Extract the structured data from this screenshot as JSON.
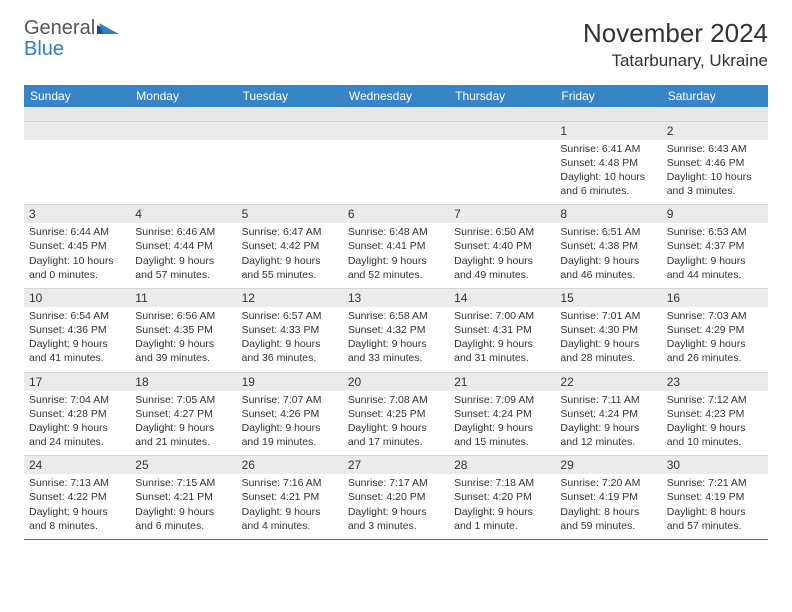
{
  "brand": {
    "name1": "General",
    "name2": "Blue"
  },
  "title": "November 2024",
  "location": "Tatarbunary, Ukraine",
  "colors": {
    "header_bg": "#3784c6",
    "header_text": "#ffffff",
    "daynum_bg": "#ebebeb",
    "row_border": "#3a6fa3",
    "brand_blue": "#2b7fc9",
    "text": "#333333",
    "background": "#ffffff"
  },
  "typography": {
    "title_fontsize": 26,
    "location_fontsize": 17,
    "dayheader_fontsize": 12,
    "daynum_fontsize": 12,
    "body_fontsize": 10.5,
    "font_family": "Arial"
  },
  "day_names": [
    "Sunday",
    "Monday",
    "Tuesday",
    "Wednesday",
    "Thursday",
    "Friday",
    "Saturday"
  ],
  "weeks": [
    [
      null,
      null,
      null,
      null,
      null,
      {
        "num": "1",
        "sunrise": "Sunrise: 6:41 AM",
        "sunset": "Sunset: 4:48 PM",
        "daylight": "Daylight: 10 hours and 6 minutes."
      },
      {
        "num": "2",
        "sunrise": "Sunrise: 6:43 AM",
        "sunset": "Sunset: 4:46 PM",
        "daylight": "Daylight: 10 hours and 3 minutes."
      }
    ],
    [
      {
        "num": "3",
        "sunrise": "Sunrise: 6:44 AM",
        "sunset": "Sunset: 4:45 PM",
        "daylight": "Daylight: 10 hours and 0 minutes."
      },
      {
        "num": "4",
        "sunrise": "Sunrise: 6:46 AM",
        "sunset": "Sunset: 4:44 PM",
        "daylight": "Daylight: 9 hours and 57 minutes."
      },
      {
        "num": "5",
        "sunrise": "Sunrise: 6:47 AM",
        "sunset": "Sunset: 4:42 PM",
        "daylight": "Daylight: 9 hours and 55 minutes."
      },
      {
        "num": "6",
        "sunrise": "Sunrise: 6:48 AM",
        "sunset": "Sunset: 4:41 PM",
        "daylight": "Daylight: 9 hours and 52 minutes."
      },
      {
        "num": "7",
        "sunrise": "Sunrise: 6:50 AM",
        "sunset": "Sunset: 4:40 PM",
        "daylight": "Daylight: 9 hours and 49 minutes."
      },
      {
        "num": "8",
        "sunrise": "Sunrise: 6:51 AM",
        "sunset": "Sunset: 4:38 PM",
        "daylight": "Daylight: 9 hours and 46 minutes."
      },
      {
        "num": "9",
        "sunrise": "Sunrise: 6:53 AM",
        "sunset": "Sunset: 4:37 PM",
        "daylight": "Daylight: 9 hours and 44 minutes."
      }
    ],
    [
      {
        "num": "10",
        "sunrise": "Sunrise: 6:54 AM",
        "sunset": "Sunset: 4:36 PM",
        "daylight": "Daylight: 9 hours and 41 minutes."
      },
      {
        "num": "11",
        "sunrise": "Sunrise: 6:56 AM",
        "sunset": "Sunset: 4:35 PM",
        "daylight": "Daylight: 9 hours and 39 minutes."
      },
      {
        "num": "12",
        "sunrise": "Sunrise: 6:57 AM",
        "sunset": "Sunset: 4:33 PM",
        "daylight": "Daylight: 9 hours and 36 minutes."
      },
      {
        "num": "13",
        "sunrise": "Sunrise: 6:58 AM",
        "sunset": "Sunset: 4:32 PM",
        "daylight": "Daylight: 9 hours and 33 minutes."
      },
      {
        "num": "14",
        "sunrise": "Sunrise: 7:00 AM",
        "sunset": "Sunset: 4:31 PM",
        "daylight": "Daylight: 9 hours and 31 minutes."
      },
      {
        "num": "15",
        "sunrise": "Sunrise: 7:01 AM",
        "sunset": "Sunset: 4:30 PM",
        "daylight": "Daylight: 9 hours and 28 minutes."
      },
      {
        "num": "16",
        "sunrise": "Sunrise: 7:03 AM",
        "sunset": "Sunset: 4:29 PM",
        "daylight": "Daylight: 9 hours and 26 minutes."
      }
    ],
    [
      {
        "num": "17",
        "sunrise": "Sunrise: 7:04 AM",
        "sunset": "Sunset: 4:28 PM",
        "daylight": "Daylight: 9 hours and 24 minutes."
      },
      {
        "num": "18",
        "sunrise": "Sunrise: 7:05 AM",
        "sunset": "Sunset: 4:27 PM",
        "daylight": "Daylight: 9 hours and 21 minutes."
      },
      {
        "num": "19",
        "sunrise": "Sunrise: 7:07 AM",
        "sunset": "Sunset: 4:26 PM",
        "daylight": "Daylight: 9 hours and 19 minutes."
      },
      {
        "num": "20",
        "sunrise": "Sunrise: 7:08 AM",
        "sunset": "Sunset: 4:25 PM",
        "daylight": "Daylight: 9 hours and 17 minutes."
      },
      {
        "num": "21",
        "sunrise": "Sunrise: 7:09 AM",
        "sunset": "Sunset: 4:24 PM",
        "daylight": "Daylight: 9 hours and 15 minutes."
      },
      {
        "num": "22",
        "sunrise": "Sunrise: 7:11 AM",
        "sunset": "Sunset: 4:24 PM",
        "daylight": "Daylight: 9 hours and 12 minutes."
      },
      {
        "num": "23",
        "sunrise": "Sunrise: 7:12 AM",
        "sunset": "Sunset: 4:23 PM",
        "daylight": "Daylight: 9 hours and 10 minutes."
      }
    ],
    [
      {
        "num": "24",
        "sunrise": "Sunrise: 7:13 AM",
        "sunset": "Sunset: 4:22 PM",
        "daylight": "Daylight: 9 hours and 8 minutes."
      },
      {
        "num": "25",
        "sunrise": "Sunrise: 7:15 AM",
        "sunset": "Sunset: 4:21 PM",
        "daylight": "Daylight: 9 hours and 6 minutes."
      },
      {
        "num": "26",
        "sunrise": "Sunrise: 7:16 AM",
        "sunset": "Sunset: 4:21 PM",
        "daylight": "Daylight: 9 hours and 4 minutes."
      },
      {
        "num": "27",
        "sunrise": "Sunrise: 7:17 AM",
        "sunset": "Sunset: 4:20 PM",
        "daylight": "Daylight: 9 hours and 3 minutes."
      },
      {
        "num": "28",
        "sunrise": "Sunrise: 7:18 AM",
        "sunset": "Sunset: 4:20 PM",
        "daylight": "Daylight: 9 hours and 1 minute."
      },
      {
        "num": "29",
        "sunrise": "Sunrise: 7:20 AM",
        "sunset": "Sunset: 4:19 PM",
        "daylight": "Daylight: 8 hours and 59 minutes."
      },
      {
        "num": "30",
        "sunrise": "Sunrise: 7:21 AM",
        "sunset": "Sunset: 4:19 PM",
        "daylight": "Daylight: 8 hours and 57 minutes."
      }
    ]
  ]
}
